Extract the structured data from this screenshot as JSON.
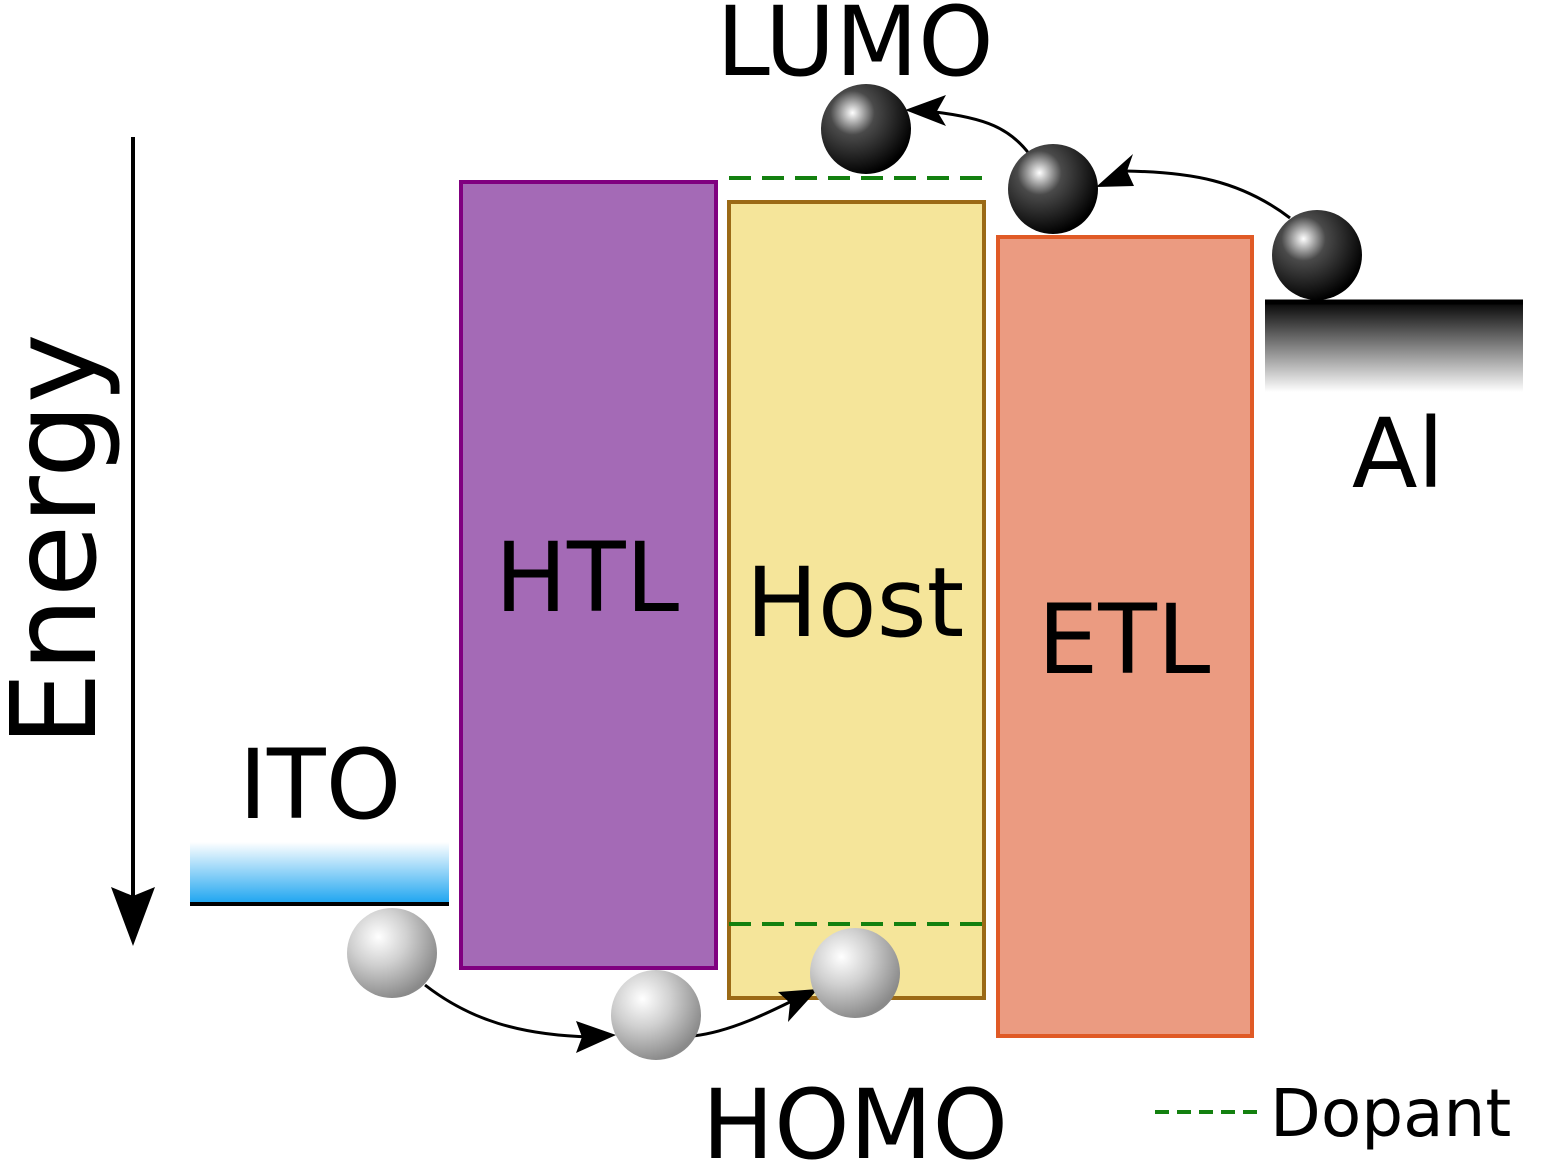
{
  "labels": {
    "energy": "Energy",
    "ito": "ITO",
    "htl": "HTL",
    "host": "Host",
    "etl": "ETL",
    "al": "Al",
    "lumo": "LUMO",
    "homo": "HOMO",
    "dopant_legend": "Dopant"
  },
  "colors": {
    "htl_fill": "#a46ab6",
    "htl_border": "#800080",
    "host_fill": "#f5e59a",
    "host_border": "#9b6a16",
    "etl_fill": "#eb9b81",
    "etl_border": "#e05a26",
    "ito_gradient": "#1ba4f0",
    "dopant_line": "#13800f",
    "electron": "#1a1a1a",
    "hole": "#9e9e9e"
  },
  "icons": {
    "electron": "dark-sphere",
    "hole": "light-sphere"
  }
}
